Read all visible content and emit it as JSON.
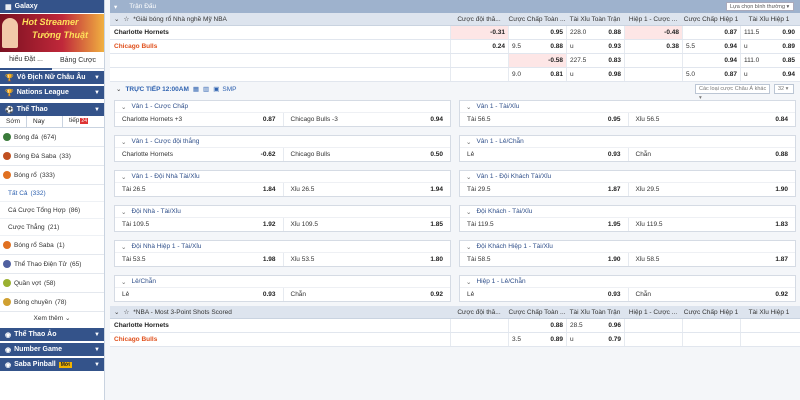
{
  "sidebar": {
    "galaxy": "Galaxy",
    "banner_l1": "Hot Streamer",
    "banner_l2": "Tướng Thuật",
    "subtab1": "hiểu Đặt ...",
    "subtab2": "Bảng Cược",
    "sections": [
      "Vô Địch Nữ Châu Âu",
      "Nations League",
      "Thể Thao"
    ],
    "tabs": [
      "Sớm",
      "Hôm Nay",
      "Trực tiếp"
    ],
    "live_badge": "24",
    "items": [
      {
        "label": "Bóng đá",
        "count": "(674)",
        "color": "#3a7a3a"
      },
      {
        "label": "Bóng Đá Saba",
        "count": "(33)",
        "color": "#c05020"
      },
      {
        "label": "Bóng rổ",
        "count": "(333)",
        "color": "#e07020"
      }
    ],
    "sub_items": [
      {
        "label": "Tất Cả",
        "count": "(332)"
      },
      {
        "label": "Cá Cược Tổng Hợp",
        "count": "(86)"
      },
      {
        "label": "Cược Thẳng",
        "count": "(21)"
      }
    ],
    "items2": [
      {
        "label": "Bóng rổ Saba",
        "count": "(1)",
        "color": "#e07020"
      },
      {
        "label": "Thể Thao Điện Tử",
        "count": "(65)",
        "color": "#5060a0"
      },
      {
        "label": "Quần vợt",
        "count": "(58)",
        "color": "#9ab030"
      },
      {
        "label": "Bóng chuyền",
        "count": "(78)",
        "color": "#d0a030"
      }
    ],
    "more": "Xem thêm",
    "bottom": [
      "Thể Thao Ảo",
      "Number Game",
      "Saba Pinball"
    ],
    "moi": "Mới"
  },
  "main": {
    "bar_title": "Trận Đấu",
    "sort_select": "Lựa chọn bình thường",
    "league1": "*Giải bóng rổ Nhà nghề Mỹ NBA",
    "cols": [
      "Cược đội thắ...",
      "Cược Chấp Toàn ...",
      "Tài Xỉu Toàn Trận",
      "Hiệp 1 - Cược ...",
      "Cược Chấp Hiệp 1",
      "Tài Xỉu Hiệp 1"
    ],
    "home": "Charlotte Hornets",
    "away": "Chicago Bulls",
    "odds_rows": [
      [
        [
          "",
          "-0.31"
        ],
        [
          "",
          "0.95"
        ],
        [
          "228.0",
          "0.88"
        ],
        [
          "",
          "-0.48"
        ],
        [
          "",
          "0.87"
        ],
        [
          "111.5",
          "0.90"
        ]
      ],
      [
        [
          "",
          "0.24"
        ],
        [
          "9.5",
          "0.88"
        ],
        [
          "u",
          "0.93"
        ],
        [
          "",
          "0.38"
        ],
        [
          "5.5",
          "0.94"
        ],
        [
          "u",
          "0.89"
        ]
      ],
      [
        [
          "",
          ""
        ],
        [
          "",
          "-0.58"
        ],
        [
          "227.5",
          "0.83"
        ],
        [
          "",
          ""
        ],
        [
          "",
          "0.94"
        ],
        [
          "111.0",
          "0.85"
        ]
      ],
      [
        [
          "",
          ""
        ],
        [
          "9.0",
          "0.81"
        ],
        [
          "u",
          "0.98"
        ],
        [
          "",
          ""
        ],
        [
          "5.0",
          "0.87"
        ],
        [
          "u",
          "0.94"
        ]
      ]
    ],
    "live_label": "TRỰC TIẾP 12:00AM",
    "smp": "SMP",
    "range_select": "Các loại cược Châu Á khác",
    "count_select": "32",
    "blocks": [
      {
        "title": "Vân 1 - Cược Chấp",
        "rows": [
          [
            [
              "Charlotte Hornets +3",
              "0.87"
            ],
            [
              "Chicago Bulls -3",
              "0.94"
            ]
          ]
        ]
      },
      {
        "title": "Vân 1 - Tài/Xỉu",
        "rows": [
          [
            [
              "Tài 56.5",
              "0.95"
            ],
            [
              "Xỉu 56.5",
              "0.84"
            ]
          ]
        ]
      },
      {
        "title": "Vân 1 - Cược đội thắng",
        "rows": [
          [
            [
              "Charlotte Hornets",
              "-0.62"
            ],
            [
              "Chicago Bulls",
              "0.50"
            ]
          ]
        ]
      },
      {
        "title": "Vân 1 - Lẻ/Chẵn",
        "rows": [
          [
            [
              "Lẻ",
              "0.93"
            ],
            [
              "Chẵn",
              "0.88"
            ]
          ]
        ]
      },
      {
        "title": "Vân 1 - Đội Nhà Tài/Xỉu",
        "rows": [
          [
            [
              "Tài 26.5",
              "1.84"
            ],
            [
              "Xỉu 26.5",
              "1.94"
            ]
          ]
        ]
      },
      {
        "title": "Vân 1 - Đội Khách Tài/Xỉu",
        "rows": [
          [
            [
              "Tài 29.5",
              "1.87"
            ],
            [
              "Xỉu 29.5",
              "1.90"
            ]
          ]
        ]
      },
      {
        "title": "Đội Nhà - Tài/Xỉu",
        "rows": [
          [
            [
              "Tài 109.5",
              "1.92"
            ],
            [
              "Xỉu 109.5",
              "1.85"
            ]
          ]
        ]
      },
      {
        "title": "Đội Khách - Tài/Xỉu",
        "rows": [
          [
            [
              "Tài 119.5",
              "1.95"
            ],
            [
              "Xỉu 119.5",
              "1.83"
            ]
          ]
        ]
      },
      {
        "title": "Đội Nhà Hiệp 1 - Tài/Xỉu",
        "rows": [
          [
            [
              "Tài 53.5",
              "1.98"
            ],
            [
              "Xỉu 53.5",
              "1.80"
            ]
          ]
        ]
      },
      {
        "title": "Đội Khách Hiệp 1 - Tài/Xỉu",
        "rows": [
          [
            [
              "Tài 58.5",
              "1.90"
            ],
            [
              "Xỉu 58.5",
              "1.87"
            ]
          ]
        ]
      },
      {
        "title": "Lẻ/Chẵn",
        "rows": [
          [
            [
              "Lẻ",
              "0.93"
            ],
            [
              "Chẵn",
              "0.92"
            ]
          ]
        ]
      },
      {
        "title": "Hiệp 1 - Lẻ/Chẵn",
        "rows": [
          [
            [
              "Lẻ",
              "0.93"
            ],
            [
              "Chẵn",
              "0.92"
            ]
          ]
        ]
      }
    ],
    "league2": "*NBA - Most 3-Point Shots Scored",
    "odds2": [
      [
        [
          "",
          ""
        ],
        [
          "",
          "0.88"
        ],
        [
          "28.5",
          "0.96"
        ],
        [
          "",
          ""
        ],
        [
          "",
          ""
        ],
        [
          "",
          ""
        ]
      ],
      [
        [
          "",
          ""
        ],
        [
          "3.5",
          "0.89"
        ],
        [
          "u",
          "0.79"
        ],
        [
          "",
          ""
        ],
        [
          "",
          ""
        ],
        [
          "",
          ""
        ]
      ]
    ]
  }
}
